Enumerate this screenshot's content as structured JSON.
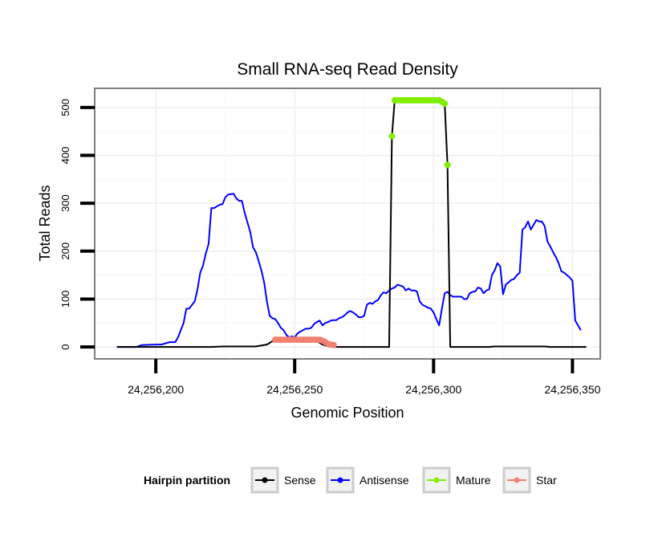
{
  "chart_data": {
    "type": "line",
    "title": "Small RNA-seq Read Density",
    "xlabel": "Genomic Position",
    "ylabel": "Total Reads",
    "xlim": [
      24256178,
      24256360
    ],
    "ylim": [
      -25,
      540
    ],
    "x_ticks": [
      24256200,
      24256250,
      24256300,
      24256350
    ],
    "x_tick_labels": [
      "24,256,200",
      "24,256,250",
      "24,256,300",
      "24,256,350"
    ],
    "y_ticks": [
      0,
      100,
      200,
      300,
      400,
      500
    ],
    "y_tick_labels": [
      "0",
      "100",
      "200",
      "300",
      "400",
      "500"
    ],
    "grid": true,
    "legend": {
      "title": "Hairpin partition",
      "position": "bottom",
      "entries": [
        "Sense",
        "Antisense",
        "Mature",
        "Star"
      ]
    },
    "series": [
      {
        "name": "Sense",
        "color": "#000000",
        "marker": false,
        "points": [
          [
            24256186,
            0
          ],
          [
            24256200,
            0
          ],
          [
            24256210,
            0
          ],
          [
            24256220,
            0
          ],
          [
            24256224,
            1
          ],
          [
            24256230,
            1
          ],
          [
            24256236,
            1
          ],
          [
            24256240,
            5
          ],
          [
            24256242,
            12
          ],
          [
            24256243,
            15
          ],
          [
            24256256,
            15
          ],
          [
            24256258,
            12
          ],
          [
            24256260,
            5
          ],
          [
            24256262,
            1
          ],
          [
            24256264,
            0
          ],
          [
            24256270,
            0
          ],
          [
            24256280,
            0
          ],
          [
            24256284,
            0
          ],
          [
            24256285,
            440
          ],
          [
            24256286,
            515
          ],
          [
            24256304,
            510
          ],
          [
            24256305,
            380
          ],
          [
            24256306,
            0
          ],
          [
            24256310,
            0
          ],
          [
            24256320,
            0
          ],
          [
            24256322,
            1
          ],
          [
            24256330,
            1
          ],
          [
            24256340,
            1
          ],
          [
            24256342,
            0
          ],
          [
            24256355,
            0
          ]
        ]
      },
      {
        "name": "Antisense",
        "color": "#0000ff",
        "marker": false,
        "points": [
          [
            24256186,
            0
          ],
          [
            24256193,
            0
          ],
          [
            24256195,
            4
          ],
          [
            24256200,
            5
          ],
          [
            24256202,
            5
          ],
          [
            24256205,
            10
          ],
          [
            24256207,
            10
          ],
          [
            24256208,
            20
          ],
          [
            24256210,
            50
          ],
          [
            24256211,
            80
          ],
          [
            24256212,
            80
          ],
          [
            24256214,
            95
          ],
          [
            24256215,
            120
          ],
          [
            24256216,
            155
          ],
          [
            24256217,
            170
          ],
          [
            24256218,
            195
          ],
          [
            24256219,
            215
          ],
          [
            24256220,
            290
          ],
          [
            24256221,
            290
          ],
          [
            24256223,
            297
          ],
          [
            24256224,
            298
          ],
          [
            24256225,
            312
          ],
          [
            24256226,
            318
          ],
          [
            24256228,
            320
          ],
          [
            24256229,
            310
          ],
          [
            24256230,
            305
          ],
          [
            24256231,
            305
          ],
          [
            24256232,
            280
          ],
          [
            24256233,
            260
          ],
          [
            24256234,
            240
          ],
          [
            24256235,
            208
          ],
          [
            24256236,
            198
          ],
          [
            24256237,
            180
          ],
          [
            24256238,
            160
          ],
          [
            24256239,
            135
          ],
          [
            24256240,
            95
          ],
          [
            24256241,
            65
          ],
          [
            24256242,
            60
          ],
          [
            24256243,
            58
          ],
          [
            24256244,
            50
          ],
          [
            24256245,
            40
          ],
          [
            24256246,
            35
          ],
          [
            24256247,
            25
          ],
          [
            24256248,
            20
          ],
          [
            24256249,
            22
          ],
          [
            24256250,
            20
          ],
          [
            24256251,
            28
          ],
          [
            24256252,
            32
          ],
          [
            24256253,
            35
          ],
          [
            24256254,
            38
          ],
          [
            24256255,
            38
          ],
          [
            24256256,
            40
          ],
          [
            24256257,
            48
          ],
          [
            24256258,
            52
          ],
          [
            24256259,
            55
          ],
          [
            24256260,
            45
          ],
          [
            24256261,
            50
          ],
          [
            24256262,
            52
          ],
          [
            24256263,
            55
          ],
          [
            24256264,
            56
          ],
          [
            24256265,
            56
          ],
          [
            24256266,
            60
          ],
          [
            24256267,
            62
          ],
          [
            24256268,
            66
          ],
          [
            24256269,
            72
          ],
          [
            24256270,
            75
          ],
          [
            24256271,
            72
          ],
          [
            24256272,
            68
          ],
          [
            24256273,
            62
          ],
          [
            24256274,
            62
          ],
          [
            24256275,
            65
          ],
          [
            24256276,
            88
          ],
          [
            24256277,
            92
          ],
          [
            24256278,
            90
          ],
          [
            24256279,
            95
          ],
          [
            24256280,
            98
          ],
          [
            24256281,
            108
          ],
          [
            24256282,
            114
          ],
          [
            24256283,
            112
          ],
          [
            24256284,
            118
          ],
          [
            24256285,
            122
          ],
          [
            24256286,
            124
          ],
          [
            24256287,
            130
          ],
          [
            24256288,
            128
          ],
          [
            24256289,
            126
          ],
          [
            24256290,
            118
          ],
          [
            24256291,
            122
          ],
          [
            24256292,
            118
          ],
          [
            24256293,
            118
          ],
          [
            24256294,
            116
          ],
          [
            24256295,
            95
          ],
          [
            24256296,
            88
          ],
          [
            24256297,
            85
          ],
          [
            24256298,
            82
          ],
          [
            24256299,
            80
          ],
          [
            24256300,
            72
          ],
          [
            24256301,
            58
          ],
          [
            24256302,
            45
          ],
          [
            24256303,
            80
          ],
          [
            24256304,
            112
          ],
          [
            24256305,
            115
          ],
          [
            24256306,
            108
          ],
          [
            24256307,
            105
          ],
          [
            24256308,
            105
          ],
          [
            24256309,
            105
          ],
          [
            24256310,
            105
          ],
          [
            24256311,
            100
          ],
          [
            24256312,
            100
          ],
          [
            24256313,
            112
          ],
          [
            24256314,
            115
          ],
          [
            24256315,
            116
          ],
          [
            24256316,
            124
          ],
          [
            24256317,
            122
          ],
          [
            24256318,
            112
          ],
          [
            24256319,
            118
          ],
          [
            24256320,
            120
          ],
          [
            24256321,
            150
          ],
          [
            24256322,
            160
          ],
          [
            24256323,
            175
          ],
          [
            24256324,
            168
          ],
          [
            24256325,
            110
          ],
          [
            24256326,
            130
          ],
          [
            24256327,
            135
          ],
          [
            24256328,
            140
          ],
          [
            24256329,
            142
          ],
          [
            24256330,
            150
          ],
          [
            24256331,
            155
          ],
          [
            24256332,
            245
          ],
          [
            24256333,
            250
          ],
          [
            24256334,
            262
          ],
          [
            24256335,
            245
          ],
          [
            24256336,
            255
          ],
          [
            24256337,
            265
          ],
          [
            24256338,
            262
          ],
          [
            24256339,
            262
          ],
          [
            24256340,
            252
          ],
          [
            24256341,
            220
          ],
          [
            24256342,
            210
          ],
          [
            24256343,
            198
          ],
          [
            24256344,
            188
          ],
          [
            24256345,
            175
          ],
          [
            24256346,
            158
          ],
          [
            24256347,
            155
          ],
          [
            24256348,
            150
          ],
          [
            24256349,
            145
          ],
          [
            24256350,
            138
          ],
          [
            24256351,
            55
          ],
          [
            24256352,
            45
          ],
          [
            24256353,
            35
          ]
        ]
      },
      {
        "name": "Mature",
        "color": "#80ee00",
        "marker": true,
        "points": [
          [
            24256285,
            440
          ],
          [
            24256286,
            515
          ],
          [
            24256287,
            515
          ],
          [
            24256288,
            515
          ],
          [
            24256289,
            515
          ],
          [
            24256290,
            515
          ],
          [
            24256291,
            515
          ],
          [
            24256292,
            515
          ],
          [
            24256293,
            515
          ],
          [
            24256294,
            515
          ],
          [
            24256295,
            515
          ],
          [
            24256296,
            515
          ],
          [
            24256297,
            515
          ],
          [
            24256298,
            515
          ],
          [
            24256299,
            515
          ],
          [
            24256300,
            515
          ],
          [
            24256301,
            515
          ],
          [
            24256302,
            515
          ],
          [
            24256303,
            512
          ],
          [
            24256304,
            508
          ],
          [
            24256305,
            380
          ]
        ]
      },
      {
        "name": "Star",
        "color": "#f08070",
        "marker": true,
        "points": [
          [
            24256243,
            15
          ],
          [
            24256244,
            15
          ],
          [
            24256245,
            15
          ],
          [
            24256246,
            15
          ],
          [
            24256247,
            15
          ],
          [
            24256248,
            15
          ],
          [
            24256249,
            15
          ],
          [
            24256250,
            15
          ],
          [
            24256251,
            15
          ],
          [
            24256252,
            15
          ],
          [
            24256253,
            15
          ],
          [
            24256254,
            15
          ],
          [
            24256255,
            15
          ],
          [
            24256256,
            15
          ],
          [
            24256257,
            15
          ],
          [
            24256258,
            15
          ],
          [
            24256259,
            15
          ],
          [
            24256260,
            13
          ],
          [
            24256261,
            10
          ],
          [
            24256262,
            6
          ],
          [
            24256263,
            5
          ],
          [
            24256264,
            4
          ]
        ]
      }
    ]
  }
}
